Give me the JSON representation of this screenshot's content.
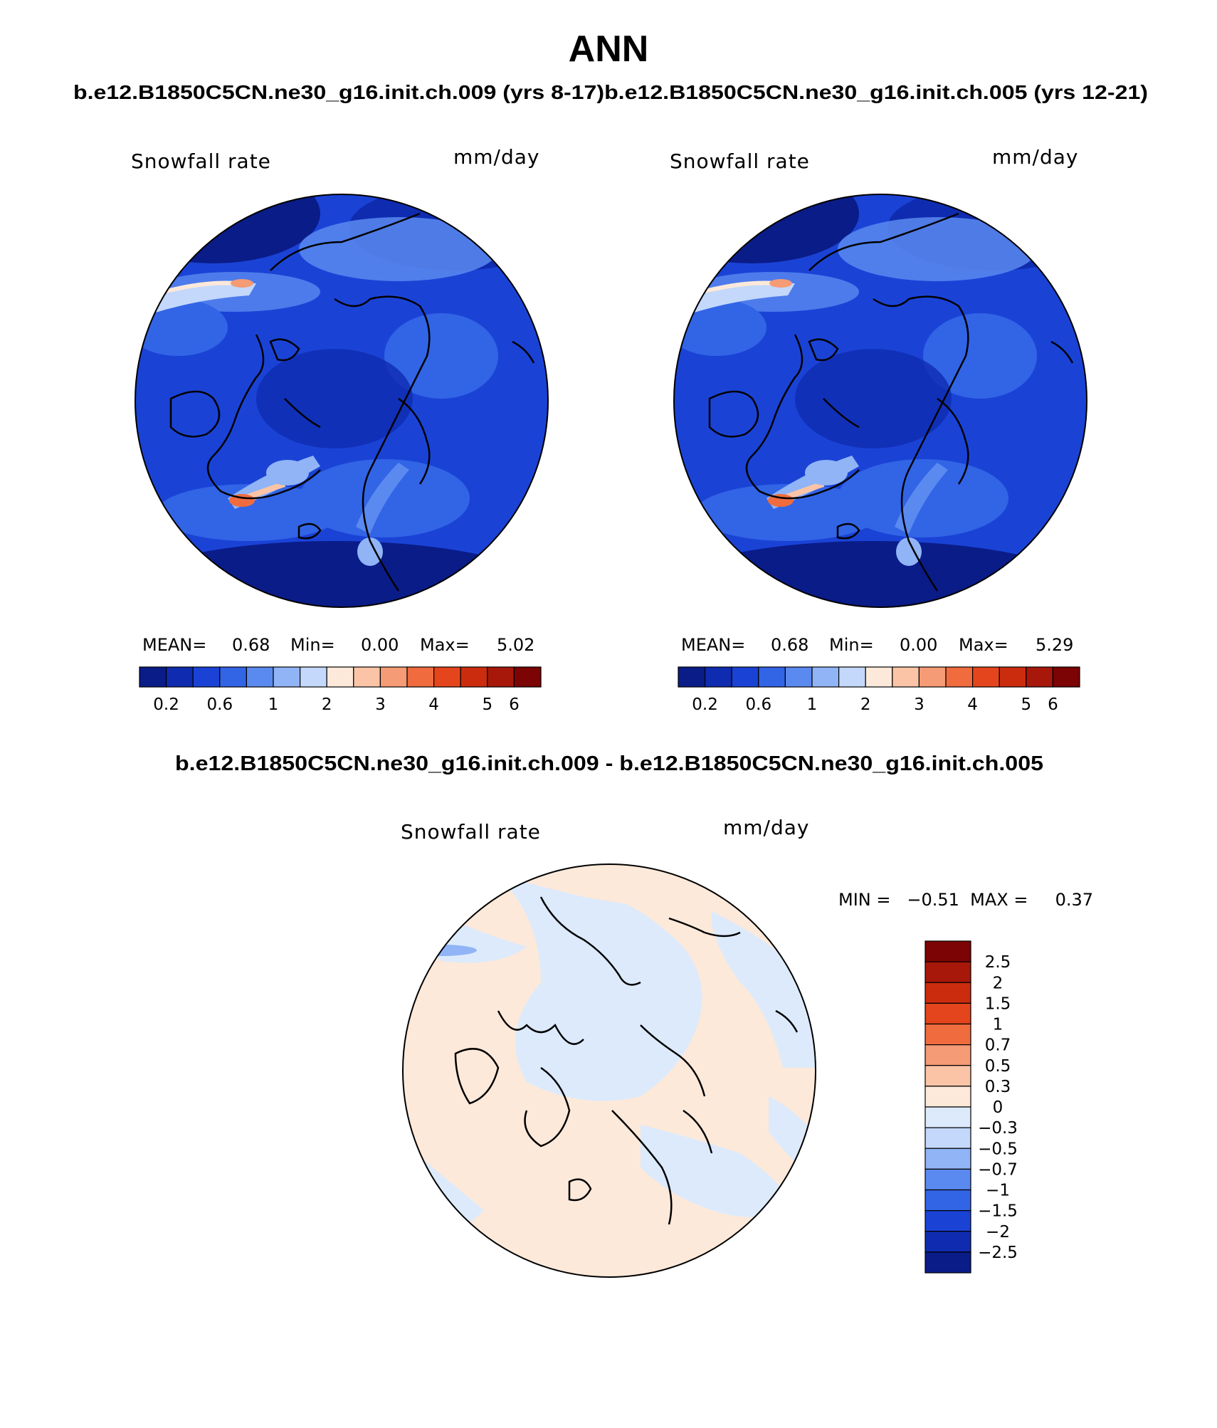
{
  "title": "ANN",
  "subtitle": "b.e12.B1850C5CN.ne30_g16.init.ch.009 (yrs 8-17)b.e12.B1850C5CN.ne30_g16.init.ch.005 (yrs 12-21)",
  "diff_title": "b.e12.B1850C5CN.ne30_g16.init.ch.009 - b.e12.B1850C5CN.ne30_g16.init.ch.005",
  "panels": [
    {
      "variable": "Snowfall rate",
      "units": "mm/day",
      "stats": {
        "mean_label": "MEAN=",
        "mean": "0.68",
        "min_label": "Min=",
        "min": "0.00",
        "max_label": "Max=",
        "max": "5.02"
      }
    },
    {
      "variable": "Snowfall rate",
      "units": "mm/day",
      "stats": {
        "mean_label": "MEAN=",
        "mean": "0.68",
        "min_label": "Min=",
        "min": "0.00",
        "max_label": "Max=",
        "max": "5.29"
      }
    }
  ],
  "diff_panel": {
    "variable": "Snowfall rate",
    "units": "mm/day",
    "minmax": "MIN =   −0.51  MAX =     0.37"
  },
  "abs_colorbar": {
    "colors": [
      "#0a1c88",
      "#0f2cb0",
      "#1a43d6",
      "#3264e6",
      "#5a8af0",
      "#90b4f6",
      "#c3d8fb",
      "#fde9da",
      "#fbc4a6",
      "#f59b76",
      "#f06c3e",
      "#e4451c",
      "#cc2c0e",
      "#a8180a",
      "#7c0404"
    ],
    "tick_labels": [
      "0.2",
      "0.6",
      "1",
      "2",
      "3",
      "4",
      "5",
      "6"
    ]
  },
  "diff_colorbar": {
    "colors_top_to_bottom": [
      "#7c0404",
      "#a8180a",
      "#cc2c0e",
      "#e4451c",
      "#f06c3e",
      "#f59b76",
      "#fbc4a6",
      "#fde9da",
      "#dceafc",
      "#c3d8fb",
      "#90b4f6",
      "#5a8af0",
      "#3264e6",
      "#1a43d6",
      "#0f2cb0",
      "#0a1c88"
    ],
    "labels": [
      "2.5",
      "2",
      "1.5",
      "1",
      "0.7",
      "0.5",
      "0.3",
      "0",
      "−0.3",
      "−0.5",
      "−0.7",
      "−1",
      "−1.5",
      "−2",
      "−2.5"
    ]
  },
  "map_colors": {
    "ocean_deep": "#0a1c88",
    "base": "#1a43d6",
    "mid": "#3264e6",
    "light": "#5a8af0",
    "lighter": "#90b4f6",
    "palest": "#c3d8fb",
    "cream": "#fde9da",
    "peach": "#fbc4a6",
    "orange": "#f06c3e",
    "red": "#cc2c0e",
    "diff_cream": "#fde9da",
    "diff_blue": "#dceafc",
    "diff_mid_blue": "#90b4f6"
  }
}
